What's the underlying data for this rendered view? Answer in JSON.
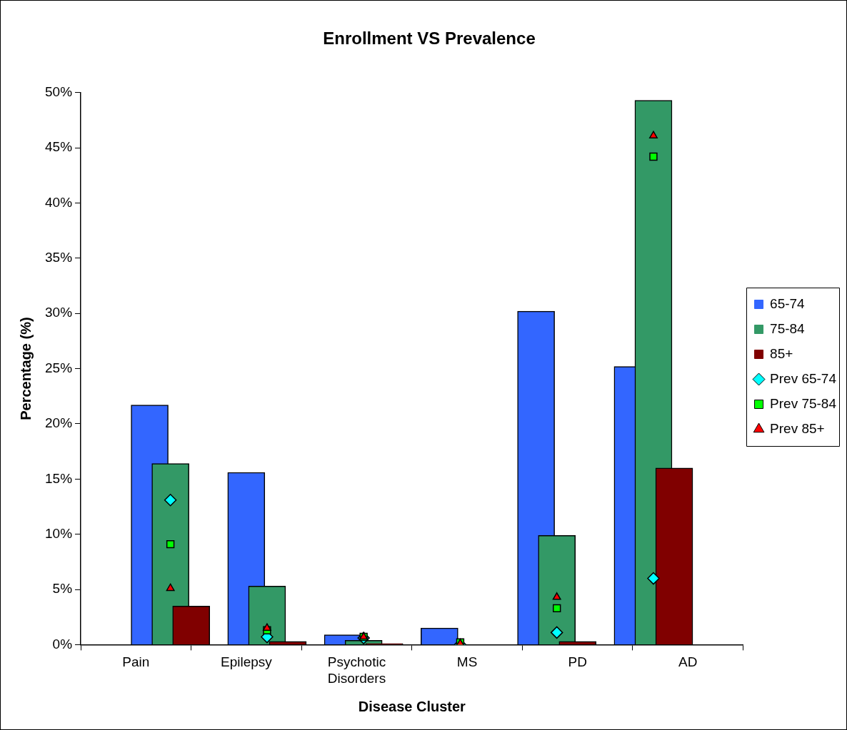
{
  "chart_data": {
    "type": "bar",
    "title": "Enrollment VS Prevalence",
    "xlabel": "Disease Cluster",
    "ylabel": "Percentage (%)",
    "categories": [
      "Pain",
      "Epilepsy",
      "Psychotic Disorders",
      "MS",
      "PD",
      "AD"
    ],
    "series": [
      {
        "name": "65-74",
        "color": "#3366ff",
        "values": [
          21.7,
          15.6,
          0.9,
          1.5,
          30.2,
          25.2
        ]
      },
      {
        "name": "75-84",
        "color": "#339966",
        "values": [
          16.4,
          5.3,
          0.4,
          0,
          9.9,
          49.3
        ]
      },
      {
        "name": "85+",
        "color": "#800000",
        "values": [
          3.5,
          0.3,
          0.1,
          0,
          0.3,
          16.0
        ]
      },
      {
        "name": "Prev 65-74",
        "type": "scatter",
        "marker": "diamond",
        "color": "#00ffff",
        "values": [
          13.1,
          0.7,
          0.6,
          0,
          1.1,
          6.0
        ]
      },
      {
        "name": "Prev 75-84",
        "type": "scatter",
        "marker": "square",
        "color": "#00ff00",
        "values": [
          9.1,
          1.3,
          0.7,
          0.2,
          3.3,
          44.2
        ]
      },
      {
        "name": "Prev 85+",
        "type": "scatter",
        "marker": "triangle",
        "color": "#ff0000",
        "values": [
          5.1,
          1.5,
          0.7,
          0.1,
          4.3,
          46.1
        ]
      }
    ],
    "ylim": [
      0,
      50
    ],
    "yticks": [
      {
        "value": 0,
        "label": "0%"
      },
      {
        "value": 5,
        "label": "5%"
      },
      {
        "value": 10,
        "label": "10%"
      },
      {
        "value": 15,
        "label": "15%"
      },
      {
        "value": 20,
        "label": "20%"
      },
      {
        "value": 25,
        "label": "25%"
      },
      {
        "value": 30,
        "label": "30%"
      },
      {
        "value": 35,
        "label": "35%"
      },
      {
        "value": 40,
        "label": "40%"
      },
      {
        "value": 45,
        "label": "45%"
      },
      {
        "value": 50,
        "label": "50%"
      }
    ],
    "grid": false,
    "legend": "right"
  }
}
